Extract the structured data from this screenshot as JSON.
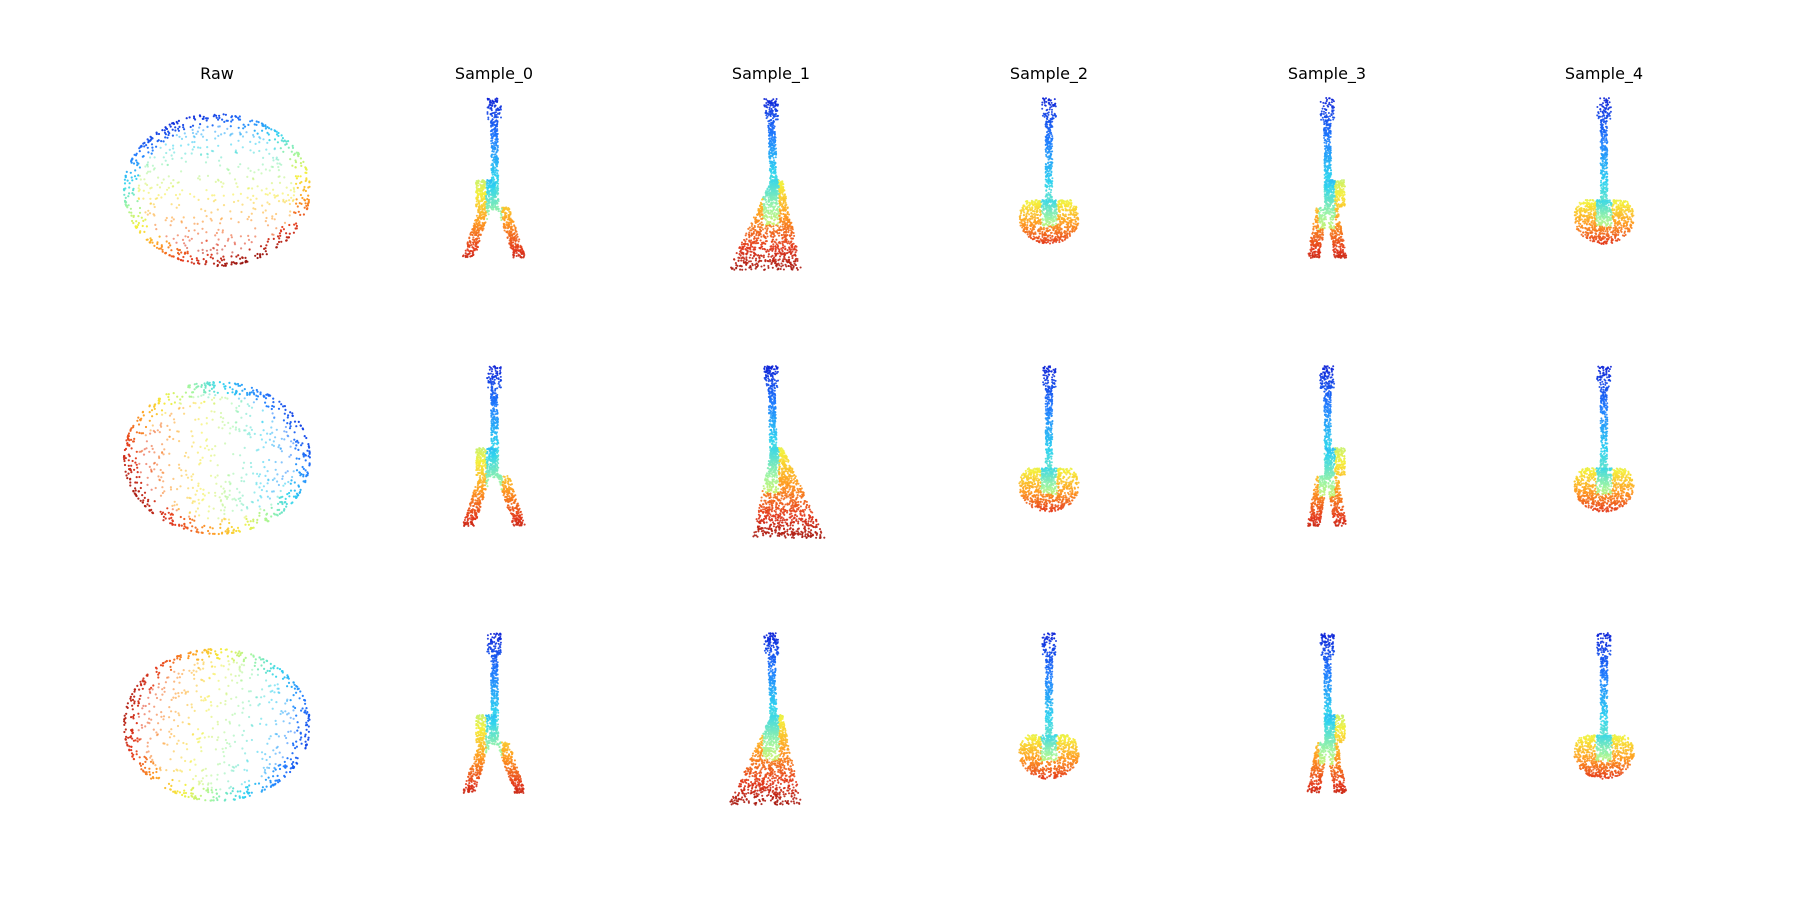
{
  "columns": [
    "Raw",
    "Sample_0",
    "Sample_1",
    "Sample_2",
    "Sample_3",
    "Sample_4"
  ],
  "rows": 3,
  "colormap": [
    "#0a1fd6",
    "#1e7bff",
    "#2fd3f0",
    "#9ff5a0",
    "#f5ef3a",
    "#ff9a1f",
    "#e3361a",
    "#8a0b0b"
  ],
  "cells": [
    [
      {
        "shape": "ellipse",
        "variant": 0
      },
      {
        "shape": "guitar-flying",
        "variant": 0
      },
      {
        "shape": "guitar-wide",
        "variant": 0
      },
      {
        "shape": "guitar-classic",
        "variant": 0
      },
      {
        "shape": "guitar-flying",
        "variant": 1
      },
      {
        "shape": "guitar-classic",
        "variant": 1
      }
    ],
    [
      {
        "shape": "ellipse",
        "variant": 1
      },
      {
        "shape": "guitar-flying",
        "variant": 2
      },
      {
        "shape": "guitar-wide",
        "variant": 1
      },
      {
        "shape": "guitar-classic",
        "variant": 2
      },
      {
        "shape": "guitar-flying",
        "variant": 3
      },
      {
        "shape": "guitar-classic",
        "variant": 3
      }
    ],
    [
      {
        "shape": "ellipse",
        "variant": 2
      },
      {
        "shape": "guitar-flying",
        "variant": 4
      },
      {
        "shape": "guitar-wide",
        "variant": 2
      },
      {
        "shape": "guitar-classic",
        "variant": 4
      },
      {
        "shape": "guitar-flying",
        "variant": 5
      },
      {
        "shape": "guitar-classic",
        "variant": 5
      }
    ]
  ]
}
